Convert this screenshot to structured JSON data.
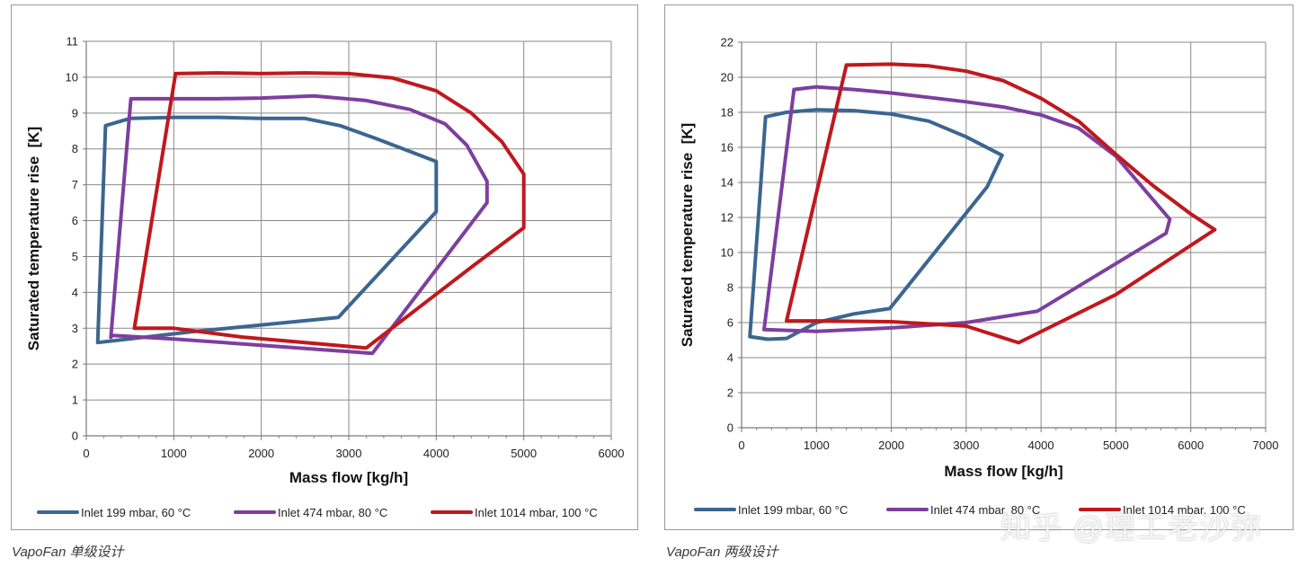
{
  "charts": {
    "left": {
      "caption": "VapoFan 单级设计",
      "chart_data": {
        "type": "line",
        "title": "",
        "xlabel": "Mass flow [kg/h]",
        "ylabel": "Saturated temperature rise  [K]",
        "xlim": [
          0,
          6000
        ],
        "ylim": [
          0,
          11
        ],
        "xticks": [
          0,
          1000,
          2000,
          3000,
          4000,
          5000,
          6000
        ],
        "yticks": [
          0,
          1,
          2,
          3,
          4,
          5,
          6,
          7,
          8,
          9,
          10,
          11
        ],
        "grid": true,
        "legend_position": "bottom",
        "series": [
          {
            "name": "Inlet 199 mbar, 60 °C",
            "color": "#3b6690",
            "points": [
              [
                130,
                2.6
              ],
              [
                220,
                8.65
              ],
              [
                500,
                8.85
              ],
              [
                1000,
                8.88
              ],
              [
                1500,
                8.88
              ],
              [
                2000,
                8.85
              ],
              [
                2500,
                8.85
              ],
              [
                2900,
                8.65
              ],
              [
                3300,
                8.3
              ],
              [
                4000,
                7.65
              ],
              [
                4000,
                6.25
              ],
              [
                2880,
                3.3
              ],
              [
                1200,
                2.9
              ],
              [
                130,
                2.6
              ]
            ]
          },
          {
            "name": "Inlet 474 mbar, 80 °C",
            "color": "#7d3f9e",
            "points": [
              [
                280,
                2.75
              ],
              [
                510,
                9.4
              ],
              [
                1000,
                9.4
              ],
              [
                1500,
                9.4
              ],
              [
                2000,
                9.42
              ],
              [
                2600,
                9.48
              ],
              [
                3200,
                9.35
              ],
              [
                3700,
                9.1
              ],
              [
                4100,
                8.7
              ],
              [
                4350,
                8.1
              ],
              [
                4580,
                7.1
              ],
              [
                4580,
                6.5
              ],
              [
                3270,
                2.3
              ],
              [
                1000,
                2.7
              ],
              [
                300,
                2.8
              ],
              [
                280,
                2.75
              ]
            ]
          },
          {
            "name": "Inlet 1014 mbar, 100 °C",
            "color": "#c0181d",
            "points": [
              [
                1020,
                10.1
              ],
              [
                1500,
                10.12
              ],
              [
                2000,
                10.1
              ],
              [
                2500,
                10.12
              ],
              [
                3000,
                10.1
              ],
              [
                3500,
                9.98
              ],
              [
                4000,
                9.62
              ],
              [
                4400,
                9.0
              ],
              [
                4750,
                8.2
              ],
              [
                5000,
                7.3
              ],
              [
                5000,
                5.8
              ],
              [
                4400,
                4.7
              ],
              [
                3200,
                2.45
              ],
              [
                1800,
                2.75
              ],
              [
                1000,
                3.0
              ],
              [
                550,
                3.0
              ],
              [
                1020,
                10.1
              ]
            ]
          }
        ]
      }
    },
    "right": {
      "caption": "VapoFan 两级设计",
      "chart_data": {
        "type": "line",
        "title": "",
        "xlabel": "Mass flow [kg/h]",
        "ylabel": "Saturated temperature rise  [K]",
        "xlim": [
          0,
          7000
        ],
        "ylim": [
          0,
          22
        ],
        "xticks": [
          0,
          1000,
          2000,
          3000,
          4000,
          5000,
          6000,
          7000
        ],
        "yticks": [
          0,
          2,
          4,
          6,
          8,
          10,
          12,
          14,
          16,
          18,
          20,
          22
        ],
        "grid": true,
        "legend_position": "bottom",
        "series": [
          {
            "name": "Inlet 199 mbar, 60 °C",
            "color": "#3b6690",
            "points": [
              [
                110,
                5.2
              ],
              [
                320,
                17.75
              ],
              [
                600,
                18.0
              ],
              [
                1000,
                18.15
              ],
              [
                1500,
                18.1
              ],
              [
                2000,
                17.9
              ],
              [
                2500,
                17.5
              ],
              [
                3000,
                16.6
              ],
              [
                3480,
                15.55
              ],
              [
                3280,
                13.75
              ],
              [
                1980,
                6.8
              ],
              [
                1500,
                6.5
              ],
              [
                1000,
                6.0
              ],
              [
                600,
                5.1
              ],
              [
                350,
                5.05
              ],
              [
                110,
                5.2
              ]
            ]
          },
          {
            "name": "Inlet 474 mbar, 80 °C",
            "color": "#7d3f9e",
            "points": [
              [
                300,
                5.6
              ],
              [
                700,
                19.3
              ],
              [
                1000,
                19.45
              ],
              [
                1500,
                19.3
              ],
              [
                2000,
                19.1
              ],
              [
                3000,
                18.6
              ],
              [
                3500,
                18.3
              ],
              [
                4000,
                17.85
              ],
              [
                4500,
                17.1
              ],
              [
                5000,
                15.5
              ],
              [
                5400,
                13.5
              ],
              [
                5720,
                11.9
              ],
              [
                5670,
                11.1
              ],
              [
                3950,
                6.65
              ],
              [
                3000,
                6.0
              ],
              [
                2000,
                5.7
              ],
              [
                1000,
                5.5
              ],
              [
                300,
                5.6
              ]
            ]
          },
          {
            "name": "Inlet 1014 mbar, 100 °C",
            "color": "#c0181d",
            "points": [
              [
                1400,
                20.7
              ],
              [
                2000,
                20.75
              ],
              [
                2500,
                20.65
              ],
              [
                3000,
                20.35
              ],
              [
                3500,
                19.8
              ],
              [
                4000,
                18.8
              ],
              [
                4500,
                17.5
              ],
              [
                5000,
                15.6
              ],
              [
                5500,
                13.8
              ],
              [
                6000,
                12.2
              ],
              [
                6320,
                11.3
              ],
              [
                5000,
                7.6
              ],
              [
                3700,
                4.85
              ],
              [
                3000,
                5.8
              ],
              [
                2000,
                6.05
              ],
              [
                1000,
                6.1
              ],
              [
                600,
                6.1
              ],
              [
                1400,
                20.7
              ]
            ]
          }
        ]
      }
    }
  },
  "watermark": "知乎 @理工老沙弥"
}
